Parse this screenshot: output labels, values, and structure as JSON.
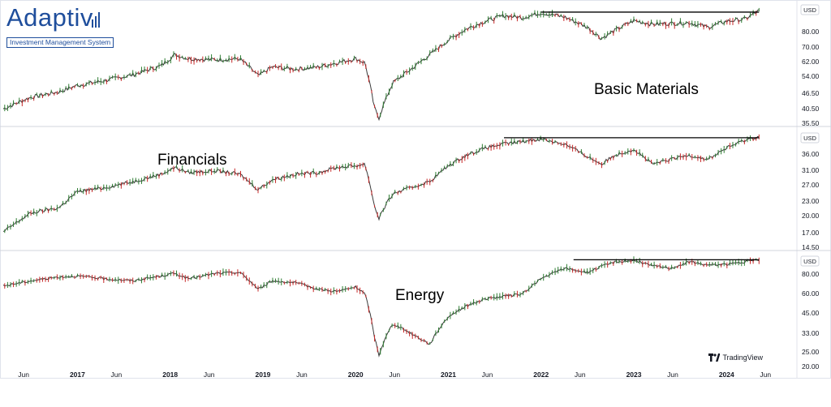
{
  "logo": {
    "name": "Adaptiv",
    "tagline": "Investment Management System"
  },
  "watermark": "TradingView",
  "x_axis": {
    "start": 2016.2,
    "end": 2024.75,
    "ticks": [
      {
        "t": 2016.42,
        "label": "Jun",
        "major": false
      },
      {
        "t": 2017.0,
        "label": "2017",
        "major": true
      },
      {
        "t": 2017.42,
        "label": "Jun",
        "major": false
      },
      {
        "t": 2018.0,
        "label": "2018",
        "major": true
      },
      {
        "t": 2018.42,
        "label": "Jun",
        "major": false
      },
      {
        "t": 2019.0,
        "label": "2019",
        "major": true
      },
      {
        "t": 2019.42,
        "label": "Jun",
        "major": false
      },
      {
        "t": 2020.0,
        "label": "2020",
        "major": true
      },
      {
        "t": 2020.42,
        "label": "Jun",
        "major": false
      },
      {
        "t": 2021.0,
        "label": "2021",
        "major": true
      },
      {
        "t": 2021.42,
        "label": "Jun",
        "major": false
      },
      {
        "t": 2022.0,
        "label": "2022",
        "major": true
      },
      {
        "t": 2022.42,
        "label": "Jun",
        "major": false
      },
      {
        "t": 2023.0,
        "label": "2023",
        "major": true
      },
      {
        "t": 2023.42,
        "label": "Jun",
        "major": false
      },
      {
        "t": 2024.0,
        "label": "2024",
        "major": true
      },
      {
        "t": 2024.42,
        "label": "Jun",
        "major": false
      }
    ]
  },
  "colors": {
    "up": "#2e7d32",
    "down": "#c62828",
    "neutral": "#3a3a3a",
    "line": "#000000"
  },
  "chart_data": [
    {
      "type": "line",
      "title": "Basic Materials",
      "currency": "USD",
      "scale": "log",
      "ylim": [
        35.5,
        94
      ],
      "yticks": [
        "80.00",
        "70.00",
        "62.00",
        "54.00",
        "46.50",
        "40.50",
        "35.50"
      ],
      "resistance": {
        "x": [
          2022.0,
          2024.35
        ],
        "y": 88.5
      },
      "series": [
        {
          "x": [
            2016.2,
            2016.5,
            2016.8,
            2017.0,
            2017.3,
            2017.6,
            2017.9,
            2018.05,
            2018.2,
            2018.5,
            2018.75,
            2018.95,
            2019.1,
            2019.35,
            2019.6,
            2019.8,
            2020.0,
            2020.1,
            2020.2,
            2020.25,
            2020.4,
            2020.6,
            2020.8,
            2021.0,
            2021.2,
            2021.4,
            2021.6,
            2021.8,
            2022.0,
            2022.25,
            2022.5,
            2022.65,
            2022.8,
            2023.0,
            2023.2,
            2023.4,
            2023.6,
            2023.8,
            2024.0,
            2024.2,
            2024.35
          ],
          "y": [
            39.5,
            43.5,
            45.5,
            48.0,
            50.0,
            52.5,
            56.5,
            62.0,
            60.0,
            59.5,
            60.0,
            52.0,
            56.0,
            55.0,
            56.0,
            58.0,
            60.0,
            58.0,
            40.0,
            36.5,
            49.0,
            55.0,
            62.0,
            70.0,
            77.0,
            82.0,
            86.0,
            84.5,
            88.0,
            85.0,
            78.0,
            71.0,
            76.0,
            82.5,
            80.0,
            80.5,
            81.0,
            78.0,
            82.0,
            83.5,
            89.5
          ]
        }
      ]
    },
    {
      "type": "line",
      "title": "Financials",
      "currency": "USD",
      "scale": "log",
      "ylim": [
        14.5,
        42
      ],
      "yticks": [
        "36.00",
        "31.00",
        "27.00",
        "23.00",
        "20.00",
        "17.00",
        "14.50"
      ],
      "resistance": {
        "x": [
          2021.6,
          2024.35
        ],
        "y": 40.0
      },
      "series": [
        {
          "x": [
            2016.2,
            2016.5,
            2016.8,
            2017.0,
            2017.3,
            2017.6,
            2017.9,
            2018.05,
            2018.2,
            2018.5,
            2018.75,
            2018.95,
            2019.1,
            2019.35,
            2019.6,
            2019.8,
            2020.0,
            2020.1,
            2020.2,
            2020.25,
            2020.4,
            2020.6,
            2020.8,
            2021.0,
            2021.2,
            2021.4,
            2021.6,
            2021.8,
            2022.0,
            2022.25,
            2022.5,
            2022.65,
            2022.8,
            2023.0,
            2023.2,
            2023.4,
            2023.6,
            2023.8,
            2024.0,
            2024.2,
            2024.35
          ],
          "y": [
            15.2,
            18.5,
            19.5,
            23.0,
            24.0,
            25.5,
            27.5,
            29.5,
            28.0,
            28.5,
            27.5,
            23.5,
            26.0,
            27.5,
            28.0,
            29.5,
            30.0,
            30.5,
            20.0,
            17.5,
            22.5,
            24.0,
            25.5,
            30.0,
            33.5,
            36.0,
            37.5,
            38.5,
            39.5,
            37.5,
            33.0,
            30.5,
            33.5,
            35.5,
            30.5,
            32.0,
            33.5,
            32.0,
            36.0,
            39.0,
            40.5
          ]
        }
      ]
    },
    {
      "type": "line",
      "title": "Energy",
      "currency": "USD",
      "scale": "log",
      "ylim": [
        20,
        98
      ],
      "yticks": [
        "80.00",
        "60.00",
        "45.00",
        "33.00",
        "25.00",
        "20.00"
      ],
      "resistance": {
        "x": [
          2022.35,
          2024.35
        ],
        "y": 93.0
      },
      "series": [
        {
          "x": [
            2016.2,
            2016.5,
            2016.8,
            2017.0,
            2017.3,
            2017.6,
            2017.9,
            2018.05,
            2018.2,
            2018.5,
            2018.75,
            2018.95,
            2019.1,
            2019.35,
            2019.6,
            2019.8,
            2020.0,
            2020.1,
            2020.2,
            2020.25,
            2020.4,
            2020.6,
            2020.8,
            2021.0,
            2021.2,
            2021.4,
            2021.6,
            2021.8,
            2022.0,
            2022.25,
            2022.5,
            2022.65,
            2022.8,
            2023.0,
            2023.2,
            2023.4,
            2023.6,
            2023.8,
            2024.0,
            2024.2,
            2024.35
          ],
          "y": [
            63.0,
            68.0,
            72.0,
            73.0,
            70.0,
            68.0,
            73.0,
            76.0,
            70.0,
            76.0,
            77.0,
            60.0,
            68.0,
            66.0,
            60.0,
            58.0,
            62.0,
            56.0,
            30.0,
            22.5,
            36.0,
            31.0,
            26.5,
            40.0,
            47.0,
            52.0,
            54.0,
            56.0,
            70.0,
            82.0,
            77.0,
            84.0,
            90.0,
            92.0,
            85.0,
            82.0,
            90.0,
            86.0,
            87.0,
            90.0,
            93.0
          ]
        }
      ]
    }
  ]
}
